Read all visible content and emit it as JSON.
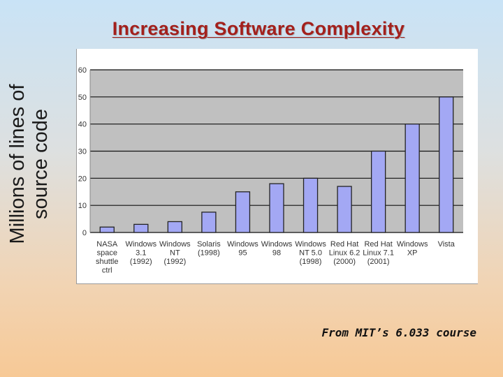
{
  "slide": {
    "title": "Increasing Software Complexity",
    "source_note": "From MIT’s 6.033 course"
  },
  "chart_data": {
    "type": "bar",
    "title": "",
    "ylabel": "Millions of lines of source code",
    "xlabel": "",
    "ylim": [
      0,
      60
    ],
    "yticks": [
      0,
      10,
      20,
      30,
      40,
      50,
      60
    ],
    "grid": true,
    "categories": [
      [
        "NASA",
        "space",
        "shuttle",
        "ctrl"
      ],
      [
        "Windows",
        "3.1",
        "(1992)"
      ],
      [
        "Windows",
        "NT",
        "(1992)"
      ],
      [
        "Solaris",
        "(1998)"
      ],
      [
        "Windows",
        "95"
      ],
      [
        "Windows",
        "98"
      ],
      [
        "Windows",
        "NT 5.0",
        "(1998)"
      ],
      [
        "Red Hat",
        "Linux 6.2",
        "(2000)"
      ],
      [
        "Red Hat",
        "Linux 7.1",
        "(2001)"
      ],
      [
        "Windows",
        "XP"
      ],
      [
        "Vista"
      ]
    ],
    "values": [
      2,
      3,
      4,
      7.5,
      15,
      18,
      20,
      17,
      30,
      40,
      50
    ],
    "colors": {
      "bar_fill": "#a3a8f4",
      "bar_stroke": "#232323",
      "plot_bg": "#c0c0c0",
      "grid": "#111111",
      "tick_text": "#333333"
    }
  }
}
